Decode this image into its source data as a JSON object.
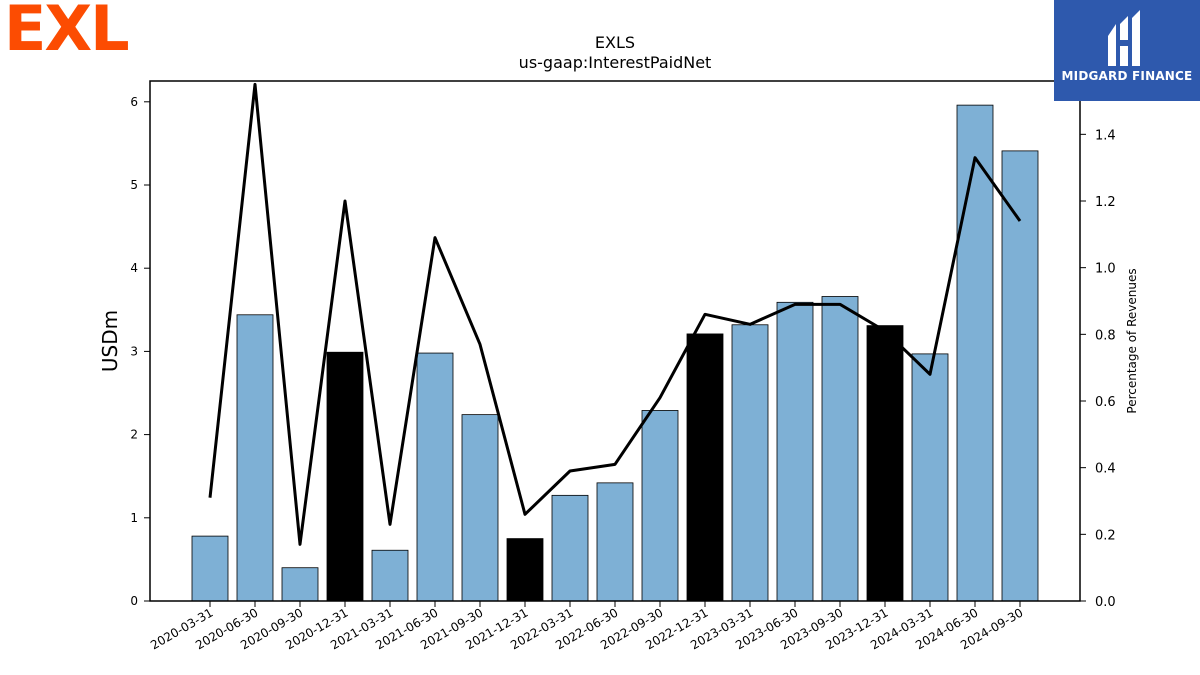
{
  "branding": {
    "left_logo_text": "EXL",
    "left_logo_color": "#fc4c02",
    "right_logo_text": "MIDGARD FINANCE",
    "right_logo_bg": "#2e59ad"
  },
  "chart_data": {
    "type": "bar",
    "title": "EXLS",
    "subtitle": "us-gaap:InterestPaidNet",
    "ylabel": "USDm",
    "y2label": "Percentage of Revenues",
    "ylim": [
      0,
      6.25
    ],
    "y2lim": [
      0,
      1.56
    ],
    "yticks": [
      0,
      1,
      2,
      3,
      4,
      5,
      6
    ],
    "y2ticks": [
      "0.0",
      "0.2",
      "0.4",
      "0.6",
      "0.8",
      "1.0",
      "1.2",
      "1.4"
    ],
    "categories": [
      "2020-03-31",
      "2020-06-30",
      "2020-09-30",
      "2020-12-31",
      "2021-03-31",
      "2021-06-30",
      "2021-09-30",
      "2021-12-31",
      "2022-03-31",
      "2022-06-30",
      "2022-09-30",
      "2022-12-31",
      "2023-03-31",
      "2023-06-30",
      "2023-09-30",
      "2023-12-31",
      "2024-03-31",
      "2024-06-30",
      "2024-09-30"
    ],
    "series": [
      {
        "type": "bar",
        "values": [
          0.78,
          3.44,
          0.4,
          2.99,
          0.61,
          2.98,
          2.24,
          0.75,
          1.27,
          1.42,
          2.29,
          3.21,
          3.32,
          3.59,
          3.66,
          3.31,
          2.97,
          5.96,
          5.41
        ],
        "colors": [
          "#7eb0d5",
          "#7eb0d5",
          "#7eb0d5",
          "#000000",
          "#7eb0d5",
          "#7eb0d5",
          "#7eb0d5",
          "#000000",
          "#7eb0d5",
          "#7eb0d5",
          "#7eb0d5",
          "#000000",
          "#7eb0d5",
          "#7eb0d5",
          "#7eb0d5",
          "#000000",
          "#7eb0d5",
          "#7eb0d5",
          "#7eb0d5"
        ]
      },
      {
        "type": "line",
        "axis": "right",
        "color": "#000000",
        "values": [
          0.31,
          1.55,
          0.17,
          1.2,
          0.23,
          1.09,
          0.77,
          0.26,
          0.39,
          0.41,
          0.61,
          0.86,
          0.83,
          0.89,
          0.89,
          0.81,
          0.68,
          1.33,
          1.14
        ]
      }
    ],
    "grid": false,
    "legend": "none"
  }
}
